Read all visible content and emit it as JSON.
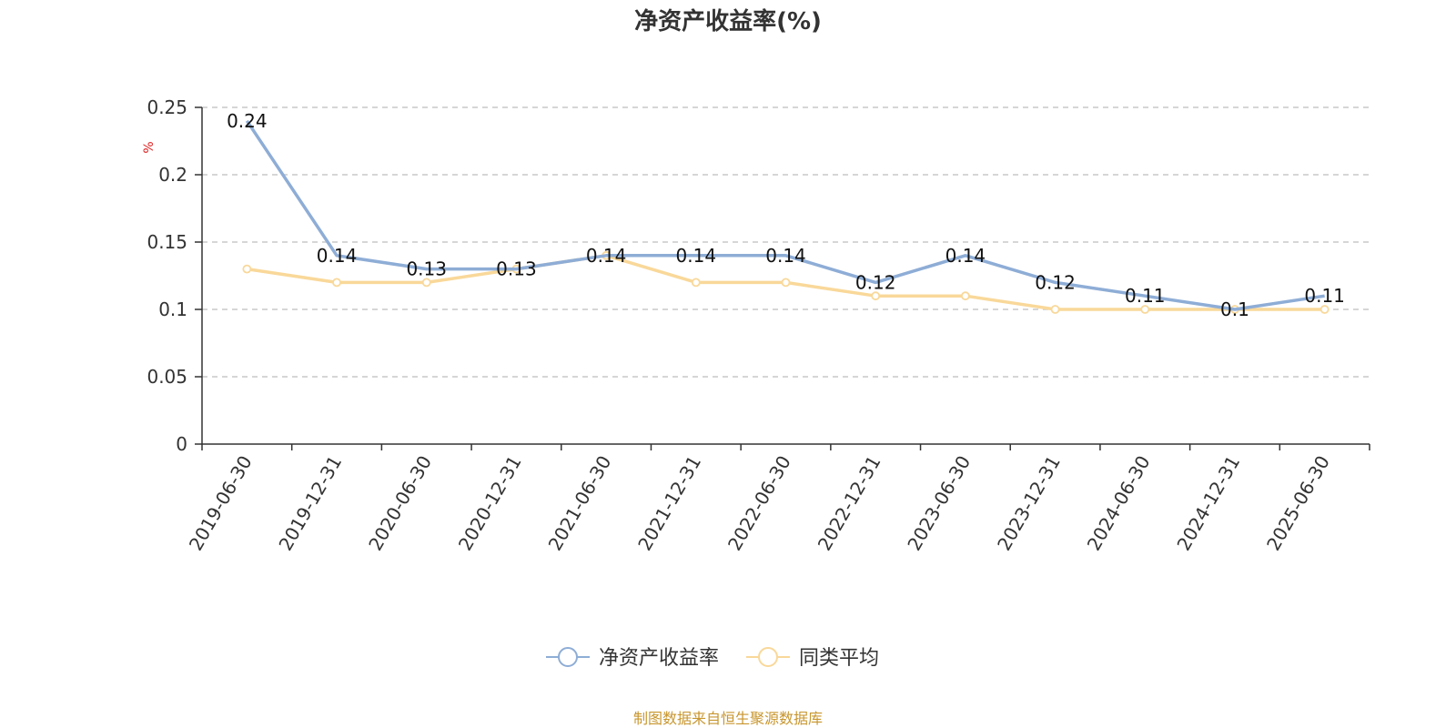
{
  "chart_data": {
    "type": "line",
    "title": "净资产收益率(%)",
    "ylabel": "%",
    "ylim": [
      0,
      0.25
    ],
    "yticks": [
      0,
      0.05,
      0.1,
      0.15,
      0.2,
      0.25
    ],
    "ytick_labels": [
      "0",
      "0.05",
      "0.1",
      "0.15",
      "0.2",
      "0.25"
    ],
    "grid": true,
    "legend_position": "bottom-center",
    "categories": [
      "2019-06-30",
      "2019-12-31",
      "2020-06-30",
      "2020-12-31",
      "2021-06-30",
      "2021-12-31",
      "2022-06-30",
      "2022-12-31",
      "2023-06-30",
      "2023-12-31",
      "2024-06-30",
      "2024-12-31",
      "2025-06-30"
    ],
    "series": [
      {
        "name": "净资产收益率",
        "color": "#8eadd6",
        "values": [
          0.24,
          0.14,
          0.13,
          0.13,
          0.14,
          0.14,
          0.14,
          0.12,
          0.14,
          0.12,
          0.11,
          0.1,
          0.11
        ],
        "labels": [
          "0.24",
          "0.14",
          "0.13",
          "0.13",
          "0.14",
          "0.14",
          "0.14",
          "0.12",
          "0.14",
          "0.12",
          "0.11",
          "0.1",
          "0.11"
        ]
      },
      {
        "name": "同类平均",
        "color": "#f9d899",
        "values": [
          0.13,
          0.12,
          0.12,
          0.13,
          0.14,
          0.12,
          0.12,
          0.11,
          0.11,
          0.1,
          0.1,
          0.1,
          0.1
        ]
      }
    ]
  },
  "source": "制图数据来自恒生聚源数据库"
}
